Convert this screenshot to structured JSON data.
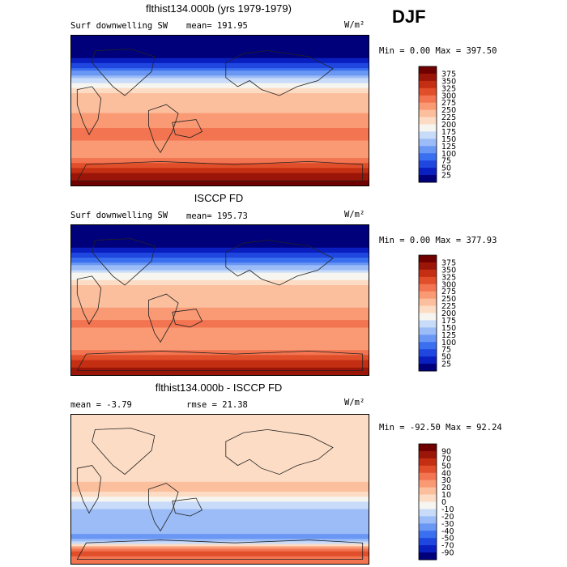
{
  "season": "DJF",
  "units_label": "W/m²",
  "panels": [
    {
      "title": "flthist134.000b (yrs 1979-1979)",
      "subtitle": "Surf downwelling SW",
      "stat_left": "mean=  191.95",
      "stat_right": "",
      "minmax": "Min =    0.00 Max =  397.50"
    },
    {
      "title": "ISCCP FD",
      "subtitle": "Surf downwelling SW",
      "stat_left": "mean=  195.73",
      "stat_right": "",
      "minmax": "Min =    0.00 Max =  377.93"
    },
    {
      "title": "flthist134.000b - ISCCP FD",
      "subtitle": "",
      "stat_left": "mean =   -3.79",
      "stat_right": "rmse =  21.38",
      "minmax": "Min = -92.50 Max =  92.24"
    }
  ],
  "chart_data": [
    {
      "type": "heatmap",
      "title": "flthist134.000b (yrs 1979-1979)",
      "subtitle": "Surf downwelling SW",
      "units": "W/m²",
      "mean": 191.95,
      "min": 0.0,
      "max": 397.5,
      "colorbar_levels": [
        25,
        50,
        75,
        100,
        125,
        150,
        175,
        200,
        225,
        250,
        275,
        300,
        325,
        350,
        375
      ],
      "colorbar_colors": [
        "#00007a",
        "#0a1fbf",
        "#1f47e0",
        "#3a6ff0",
        "#6a96f4",
        "#9cbcf7",
        "#c8dbf9",
        "#f7f5ef",
        "#fcdcc4",
        "#fbbf9e",
        "#f99a74",
        "#f27450",
        "#e04e2a",
        "#c42f13",
        "#9b1508",
        "#700000"
      ],
      "latitude_profile": [
        [
          90,
          0
        ],
        [
          75,
          5
        ],
        [
          60,
          30
        ],
        [
          45,
          110
        ],
        [
          30,
          190
        ],
        [
          15,
          240
        ],
        [
          0,
          245
        ],
        [
          -15,
          265
        ],
        [
          -30,
          285
        ],
        [
          -45,
          255
        ],
        [
          -60,
          280
        ],
        [
          -75,
          350
        ],
        [
          -90,
          395
        ]
      ]
    },
    {
      "type": "heatmap",
      "title": "ISCCP FD",
      "subtitle": "Surf downwelling SW",
      "units": "W/m²",
      "mean": 195.73,
      "min": 0.0,
      "max": 377.93,
      "colorbar_levels": [
        25,
        50,
        75,
        100,
        125,
        150,
        175,
        200,
        225,
        250,
        275,
        300,
        325,
        350,
        375
      ],
      "colorbar_colors": [
        "#00007a",
        "#0a1fbf",
        "#1f47e0",
        "#3a6ff0",
        "#6a96f4",
        "#9cbcf7",
        "#c8dbf9",
        "#f7f5ef",
        "#fcdcc4",
        "#fbbf9e",
        "#f99a74",
        "#f27450",
        "#e04e2a",
        "#c42f13",
        "#9b1508",
        "#700000"
      ],
      "latitude_profile": [
        [
          90,
          0
        ],
        [
          75,
          5
        ],
        [
          60,
          30
        ],
        [
          45,
          105
        ],
        [
          30,
          185
        ],
        [
          15,
          230
        ],
        [
          0,
          235
        ],
        [
          -15,
          260
        ],
        [
          -30,
          285
        ],
        [
          -45,
          250
        ],
        [
          -60,
          270
        ],
        [
          -75,
          335
        ],
        [
          -90,
          375
        ]
      ]
    },
    {
      "type": "heatmap",
      "title": "flthist134.000b - ISCCP FD",
      "subtitle": "",
      "units": "W/m²",
      "mean": -3.79,
      "rmse": 21.38,
      "min": -92.5,
      "max": 92.24,
      "colorbar_levels": [
        90,
        70,
        50,
        40,
        30,
        20,
        10,
        0,
        -10,
        -20,
        -30,
        -40,
        -50,
        -70,
        -90
      ],
      "colorbar_colors": [
        "#700000",
        "#9b1508",
        "#c42f13",
        "#e04e2a",
        "#f27450",
        "#f99a74",
        "#fbbf9e",
        "#fcdcc4",
        "#f7f5ef",
        "#c8dbf9",
        "#9cbcf7",
        "#6a96f4",
        "#3a6ff0",
        "#1f47e0",
        "#0a1fbf",
        "#00007a"
      ],
      "latitude_profile": [
        [
          90,
          0
        ],
        [
          75,
          5
        ],
        [
          60,
          10
        ],
        [
          45,
          5
        ],
        [
          30,
          10
        ],
        [
          15,
          5
        ],
        [
          0,
          15
        ],
        [
          -15,
          -10
        ],
        [
          -30,
          -25
        ],
        [
          -45,
          -20
        ],
        [
          -60,
          -35
        ],
        [
          -75,
          45
        ],
        [
          -90,
          30
        ]
      ]
    }
  ]
}
